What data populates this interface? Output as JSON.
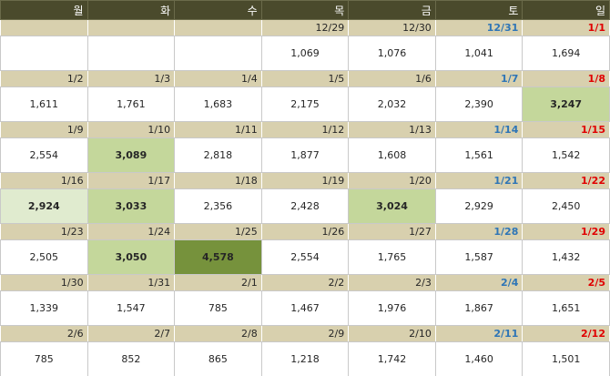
{
  "header": {
    "days": [
      "월",
      "화",
      "수",
      "목",
      "금",
      "토",
      "일"
    ],
    "background": "#4a4a2c",
    "color": "#ffffff"
  },
  "date_row": {
    "background": "#d8d0ae",
    "saturday_color": "#2e75b6",
    "sunday_color": "#e00000"
  },
  "weeks": [
    {
      "dates": [
        null,
        null,
        null,
        "12/29",
        "12/30",
        "12/31",
        "1/1"
      ],
      "values": [
        null,
        null,
        null,
        "1,069",
        "1,076",
        "1,041",
        "1,694"
      ],
      "fills": [
        null,
        null,
        null,
        null,
        null,
        null,
        null
      ]
    },
    {
      "dates": [
        "1/2",
        "1/3",
        "1/4",
        "1/5",
        "1/6",
        "1/7",
        "1/8"
      ],
      "values": [
        "1,611",
        "1,761",
        "1,683",
        "2,175",
        "2,032",
        "2,390",
        "3,247"
      ],
      "fills": [
        null,
        null,
        null,
        null,
        null,
        null,
        "#c4d79b"
      ]
    },
    {
      "dates": [
        "1/9",
        "1/10",
        "1/11",
        "1/12",
        "1/13",
        "1/14",
        "1/15"
      ],
      "values": [
        "2,554",
        "3,089",
        "2,818",
        "1,877",
        "1,608",
        "1,561",
        "1,542"
      ],
      "fills": [
        null,
        "#c4d79b",
        null,
        null,
        null,
        null,
        null
      ]
    },
    {
      "dates": [
        "1/16",
        "1/17",
        "1/18",
        "1/19",
        "1/20",
        "1/21",
        "1/22"
      ],
      "values": [
        "2,924",
        "3,033",
        "2,356",
        "2,428",
        "3,024",
        "2,929",
        "2,450"
      ],
      "fills": [
        "#e0ebcf",
        "#c4d79b",
        null,
        null,
        "#c4d79b",
        null,
        null
      ]
    },
    {
      "dates": [
        "1/23",
        "1/24",
        "1/25",
        "1/26",
        "1/27",
        "1/28",
        "1/29"
      ],
      "values": [
        "2,505",
        "3,050",
        "4,578",
        "2,554",
        "1,765",
        "1,587",
        "1,432"
      ],
      "fills": [
        null,
        "#c4d79b",
        "#76923c",
        null,
        null,
        null,
        null
      ]
    },
    {
      "dates": [
        "1/30",
        "1/31",
        "2/1",
        "2/2",
        "2/3",
        "2/4",
        "2/5"
      ],
      "values": [
        "1,339",
        "1,547",
        "785",
        "1,467",
        "1,976",
        "1,867",
        "1,651"
      ],
      "fills": [
        null,
        null,
        null,
        null,
        null,
        null,
        null
      ]
    },
    {
      "dates": [
        "2/6",
        "2/7",
        "2/8",
        "2/9",
        "2/10",
        "2/11",
        "2/12"
      ],
      "values": [
        "785",
        "852",
        "865",
        "1,218",
        "1,742",
        "1,460",
        "1,501"
      ],
      "fills": [
        null,
        null,
        null,
        null,
        null,
        null,
        null
      ]
    }
  ]
}
